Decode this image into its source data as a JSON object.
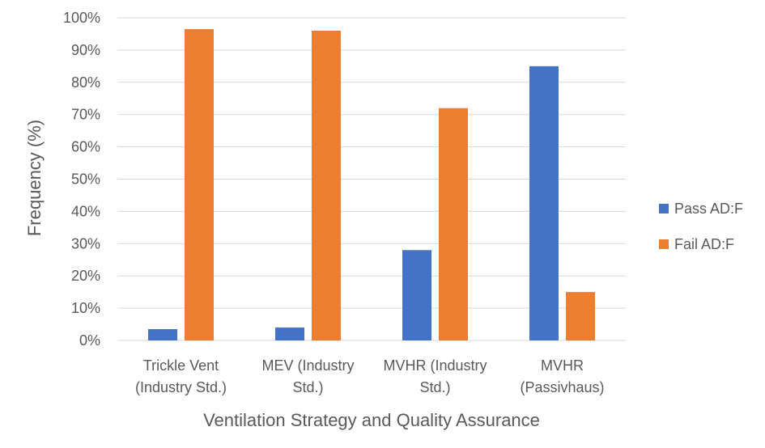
{
  "chart_data": {
    "type": "bar",
    "title": "",
    "xlabel": "Ventilation Strategy and Quality Assurance",
    "ylabel": "Frequency (%)",
    "ylim": [
      0,
      100
    ],
    "yticks": [
      "0%",
      "10%",
      "20%",
      "30%",
      "40%",
      "50%",
      "60%",
      "70%",
      "80%",
      "90%",
      "100%"
    ],
    "categories": [
      [
        "Trickle Vent",
        "(Industry Std.)"
      ],
      [
        "MEV (Industry",
        "Std.)"
      ],
      [
        "MVHR (Industry",
        "Std.)"
      ],
      [
        "MVHR",
        "(Passivhaus)"
      ]
    ],
    "series": [
      {
        "name": "Pass AD:F",
        "color": "#4472C4",
        "values": [
          3.5,
          4,
          28,
          85
        ]
      },
      {
        "name": "Fail AD:F",
        "color": "#ED7D31",
        "values": [
          96.5,
          96,
          72,
          15
        ]
      }
    ],
    "grid": true,
    "legend_position": "right"
  }
}
